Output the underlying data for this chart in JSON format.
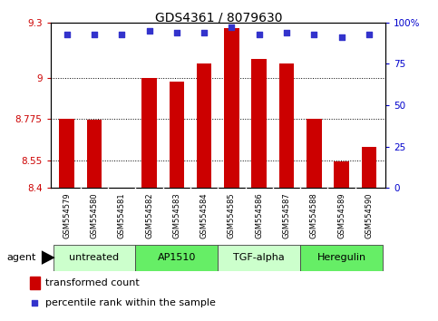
{
  "title": "GDS4361 / 8079630",
  "samples": [
    "GSM554579",
    "GSM554580",
    "GSM554581",
    "GSM554582",
    "GSM554583",
    "GSM554584",
    "GSM554585",
    "GSM554586",
    "GSM554587",
    "GSM554588",
    "GSM554589",
    "GSM554590"
  ],
  "bar_values": [
    8.775,
    8.77,
    8.4,
    9.0,
    8.98,
    9.075,
    9.27,
    9.1,
    9.075,
    8.775,
    8.545,
    8.625
  ],
  "dot_values": [
    93,
    93,
    93,
    95,
    94,
    94,
    97,
    93,
    94,
    93,
    91,
    93
  ],
  "bar_color": "#cc0000",
  "dot_color": "#3333cc",
  "ylim_left": [
    8.4,
    9.3
  ],
  "ylim_right": [
    0,
    100
  ],
  "yticks_left": [
    8.4,
    8.55,
    8.775,
    9.0,
    9.3
  ],
  "ytick_labels_left": [
    "8.4",
    "8.55",
    "8.775",
    "9",
    "9.3"
  ],
  "yticks_right": [
    0,
    25,
    50,
    75,
    100
  ],
  "ytick_labels_right": [
    "0",
    "25",
    "50",
    "75",
    "100%"
  ],
  "grid_values": [
    8.55,
    8.775,
    9.0
  ],
  "groups": [
    {
      "label": "untreated",
      "start": 0,
      "end": 3,
      "color": "#ccffcc"
    },
    {
      "label": "AP1510",
      "start": 3,
      "end": 6,
      "color": "#66ee66"
    },
    {
      "label": "TGF-alpha",
      "start": 6,
      "end": 9,
      "color": "#ccffcc"
    },
    {
      "label": "Heregulin",
      "start": 9,
      "end": 12,
      "color": "#66ee66"
    }
  ],
  "agent_label": "agent",
  "legend_bar_label": "transformed count",
  "legend_dot_label": "percentile rank within the sample",
  "background_color": "#ffffff",
  "plot_bg_color": "#ffffff",
  "sample_area_color": "#cccccc",
  "bar_width": 0.55
}
